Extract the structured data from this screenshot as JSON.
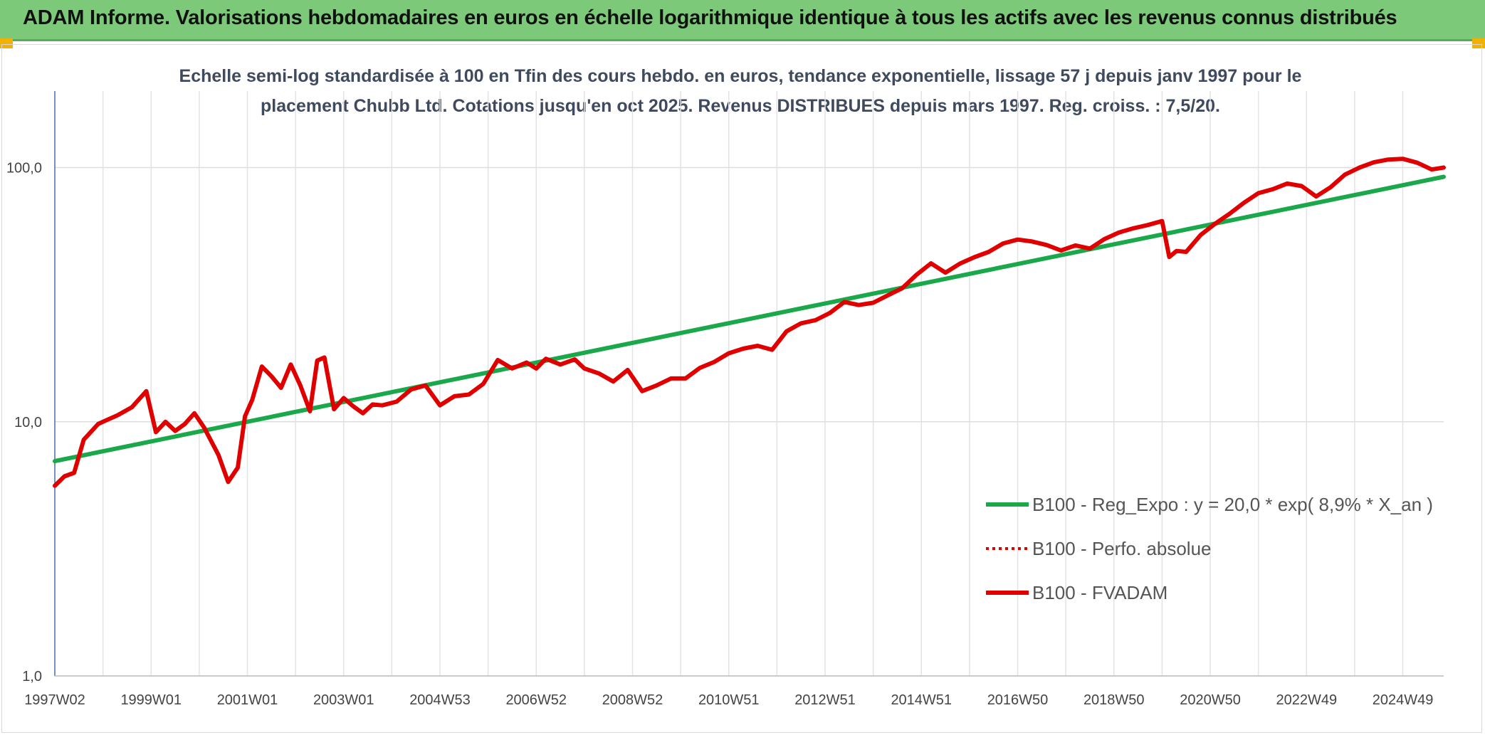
{
  "header": {
    "title": "ADAM Informe. Valorisations hebdomadaires en euros en échelle logarithmique identique à tous les actifs avec les revenus connus distribués",
    "background": "#7dc97a"
  },
  "chart_data": {
    "type": "line",
    "subtitle_line1": "Echelle semi-log standardisée à 100 en Tfin des cours hebdo. en euros, tendance exponentielle, lissage 57 j depuis janv 1997 pour le",
    "subtitle_line2": "placement Chubb Ltd. Cotations jusqu'en oct 2025. Revenus DISTRIBUES depuis mars 1997. Reg. croiss. : 7,5/20.",
    "y_scale": "log",
    "ylim": [
      1,
      200
    ],
    "y_ticks": [
      {
        "value": 1,
        "label": "1,0"
      },
      {
        "value": 10,
        "label": "10,0"
      },
      {
        "value": 100,
        "label": "100,0"
      }
    ],
    "xlim": [
      1997.0,
      2025.85
    ],
    "x_ticks": [
      {
        "value": 1997.0,
        "label": "1997W02"
      },
      {
        "value": 1999.0,
        "label": "1999W01"
      },
      {
        "value": 2001.0,
        "label": "2001W01"
      },
      {
        "value": 2003.0,
        "label": "2003W01"
      },
      {
        "value": 2005.0,
        "label": "2004W53"
      },
      {
        "value": 2007.0,
        "label": "2006W52"
      },
      {
        "value": 2009.0,
        "label": "2008W52"
      },
      {
        "value": 2011.0,
        "label": "2010W51"
      },
      {
        "value": 2013.0,
        "label": "2012W51"
      },
      {
        "value": 2015.0,
        "label": "2014W51"
      },
      {
        "value": 2017.0,
        "label": "2016W50"
      },
      {
        "value": 2019.0,
        "label": "2018W50"
      },
      {
        "value": 2021.0,
        "label": "2020W50"
      },
      {
        "value": 2023.0,
        "label": "2022W49"
      },
      {
        "value": 2025.0,
        "label": "2024W49"
      }
    ],
    "grid": true,
    "legend_position": "bottom-right",
    "series": [
      {
        "name": "B100 - Reg_Expo : y = 20,0 * exp( 8,9% *  X_an )",
        "color": "#1aa84a",
        "style": "solid",
        "x": [
          1997.0,
          2025.85
        ],
        "y": [
          7.0,
          92.0
        ]
      },
      {
        "name": "B100 - Perfo. absolue",
        "color": "#e00000",
        "style": "dotted",
        "x": [],
        "y": []
      },
      {
        "name": "B100 - FVADAM",
        "color": "#e00000",
        "style": "solid",
        "x": [
          1997.0,
          1997.2,
          1997.4,
          1997.6,
          1997.9,
          1998.1,
          1998.3,
          1998.6,
          1998.9,
          1999.1,
          1999.3,
          1999.5,
          1999.7,
          1999.9,
          2000.1,
          2000.4,
          2000.6,
          2000.8,
          2000.95,
          2001.1,
          2001.3,
          2001.5,
          2001.7,
          2001.9,
          2002.1,
          2002.3,
          2002.45,
          2002.6,
          2002.8,
          2003.0,
          2003.2,
          2003.4,
          2003.6,
          2003.8,
          2004.1,
          2004.4,
          2004.7,
          2005.0,
          2005.3,
          2005.6,
          2005.9,
          2006.2,
          2006.5,
          2006.8,
          2007.0,
          2007.2,
          2007.5,
          2007.8,
          2008.0,
          2008.3,
          2008.6,
          2008.9,
          2009.2,
          2009.5,
          2009.8,
          2010.1,
          2010.4,
          2010.7,
          2011.0,
          2011.3,
          2011.6,
          2011.9,
          2012.2,
          2012.5,
          2012.8,
          2013.1,
          2013.4,
          2013.7,
          2014.0,
          2014.3,
          2014.6,
          2014.9,
          2015.2,
          2015.5,
          2015.8,
          2016.1,
          2016.4,
          2016.7,
          2017.0,
          2017.3,
          2017.6,
          2017.9,
          2018.2,
          2018.5,
          2018.8,
          2019.1,
          2019.4,
          2019.7,
          2020.0,
          2020.15,
          2020.3,
          2020.5,
          2020.8,
          2021.1,
          2021.4,
          2021.7,
          2022.0,
          2022.3,
          2022.6,
          2022.9,
          2023.2,
          2023.5,
          2023.8,
          2024.1,
          2024.4,
          2024.7,
          2025.0,
          2025.3,
          2025.6,
          2025.85
        ],
        "y": [
          5.6,
          6.1,
          6.3,
          8.5,
          9.8,
          10.2,
          10.6,
          11.4,
          13.2,
          9.1,
          10.0,
          9.2,
          9.8,
          10.8,
          9.5,
          7.4,
          5.8,
          6.6,
          10.5,
          12.2,
          16.5,
          15.1,
          13.6,
          16.8,
          13.9,
          11.0,
          17.4,
          17.9,
          11.2,
          12.4,
          11.5,
          10.8,
          11.7,
          11.6,
          12.0,
          13.4,
          13.9,
          11.6,
          12.6,
          12.8,
          14.1,
          17.5,
          16.2,
          17.1,
          16.2,
          17.7,
          16.8,
          17.6,
          16.2,
          15.5,
          14.4,
          16.0,
          13.2,
          13.9,
          14.8,
          14.8,
          16.3,
          17.2,
          18.6,
          19.4,
          19.9,
          19.2,
          22.7,
          24.4,
          25.1,
          26.8,
          29.6,
          28.8,
          29.4,
          31.4,
          33.5,
          37.9,
          42.0,
          38.6,
          41.9,
          44.4,
          46.6,
          50.3,
          52.1,
          51.2,
          49.6,
          47.2,
          49.4,
          48.0,
          52.3,
          55.5,
          57.7,
          59.4,
          61.6,
          44.5,
          47.0,
          46.6,
          54.3,
          60.1,
          65.8,
          72.7,
          79.3,
          82.2,
          86.6,
          84.6,
          77.0,
          83.7,
          93.9,
          100.0,
          104.9,
          107.6,
          108.3,
          104.5,
          98.3,
          100.0
        ]
      }
    ]
  }
}
